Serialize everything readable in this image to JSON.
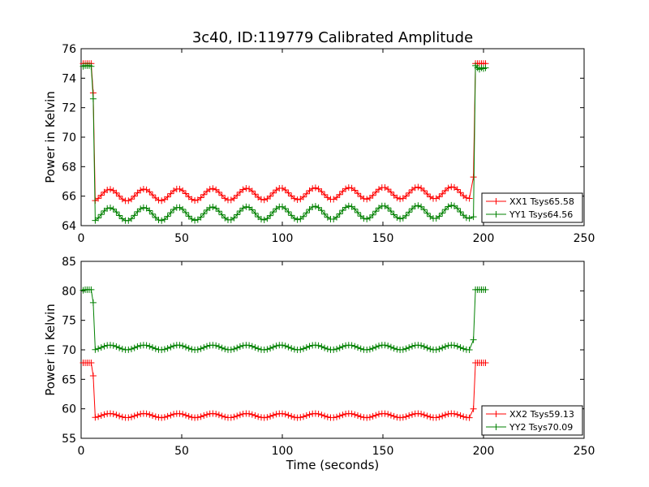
{
  "chart_data": [
    {
      "type": "line",
      "title": "3c40, ID:119779 Calibrated Amplitude",
      "xlabel": "",
      "ylabel": "Power in Kelvin",
      "xlim": [
        0,
        250
      ],
      "ylim": [
        64,
        76
      ],
      "xticks": [
        "0",
        "50",
        "100",
        "150",
        "200",
        "250"
      ],
      "yticks": [
        "64",
        "66",
        "68",
        "70",
        "72",
        "74",
        "76"
      ],
      "legend_position": "lower-right",
      "series": [
        {
          "name": "XX1 Tsys65.58",
          "color": "#ff0000",
          "start": [
            [
              1,
              75.0
            ],
            [
              2,
              75.0
            ],
            [
              3,
              75.0
            ],
            [
              4,
              75.0
            ],
            [
              5,
              75.0
            ],
            [
              6,
              73.0
            ]
          ],
          "low": {
            "x_start": 7,
            "x_end": 194,
            "step": 1.5,
            "base": 66.15,
            "amp": 0.4,
            "period": 17,
            "trend": 0.001,
            "phase": 0.0
          },
          "end": [
            [
              195,
              67.3
            ],
            [
              196,
              75.0
            ],
            [
              197,
              75.0
            ],
            [
              198,
              75.0
            ],
            [
              199,
              75.0
            ],
            [
              200,
              75.0
            ],
            [
              201,
              75.0
            ]
          ]
        },
        {
          "name": "YY1 Tsys64.56",
          "color": "#008000",
          "start": [
            [
              1,
              74.8
            ],
            [
              2,
              74.85
            ],
            [
              3,
              74.85
            ],
            [
              4,
              74.85
            ],
            [
              5,
              74.8
            ],
            [
              6,
              72.6
            ]
          ],
          "low": {
            "x_start": 7,
            "x_end": 194,
            "step": 1.5,
            "base": 64.85,
            "amp": 0.45,
            "period": 17,
            "trend": 0.001,
            "phase": 0.0
          },
          "end": [
            [
              195,
              64.6
            ],
            [
              196,
              74.85
            ],
            [
              197,
              74.7
            ],
            [
              198,
              74.6
            ],
            [
              199,
              74.7
            ],
            [
              200,
              74.65
            ],
            [
              201,
              74.7
            ]
          ]
        }
      ]
    },
    {
      "type": "line",
      "title": "",
      "xlabel": "Time (seconds)",
      "ylabel": "Power in Kelvin",
      "xlim": [
        0,
        250
      ],
      "ylim": [
        55,
        85
      ],
      "xticks": [
        "0",
        "50",
        "100",
        "150",
        "200",
        "250"
      ],
      "yticks": [
        "55",
        "60",
        "65",
        "70",
        "75",
        "80",
        "85"
      ],
      "legend_position": "lower-right",
      "series": [
        {
          "name": "XX2 Tsys59.13",
          "color": "#ff0000",
          "start": [
            [
              1,
              67.8
            ],
            [
              2,
              67.8
            ],
            [
              3,
              67.8
            ],
            [
              4,
              67.8
            ],
            [
              5,
              67.8
            ],
            [
              6,
              65.6
            ]
          ],
          "low": {
            "x_start": 7,
            "x_end": 194,
            "step": 1.5,
            "base": 58.85,
            "amp": 0.35,
            "period": 17,
            "trend": 0.0,
            "phase": 0.0
          },
          "end": [
            [
              195,
              60.0
            ],
            [
              196,
              67.8
            ],
            [
              197,
              67.8
            ],
            [
              198,
              67.8
            ],
            [
              199,
              67.8
            ],
            [
              200,
              67.8
            ],
            [
              201,
              67.8
            ]
          ]
        },
        {
          "name": "YY2 Tsys70.09",
          "color": "#008000",
          "start": [
            [
              1,
              80.1
            ],
            [
              2,
              80.2
            ],
            [
              3,
              80.2
            ],
            [
              4,
              80.2
            ],
            [
              5,
              80.2
            ],
            [
              6,
              78.0
            ]
          ],
          "low": {
            "x_start": 7,
            "x_end": 194,
            "step": 1.5,
            "base": 70.4,
            "amp": 0.4,
            "period": 17,
            "trend": 0.0,
            "phase": 0.0
          },
          "end": [
            [
              195,
              71.7
            ],
            [
              196,
              80.2
            ],
            [
              197,
              80.2
            ],
            [
              198,
              80.2
            ],
            [
              199,
              80.2
            ],
            [
              200,
              80.2
            ],
            [
              201,
              80.2
            ]
          ]
        }
      ]
    }
  ]
}
